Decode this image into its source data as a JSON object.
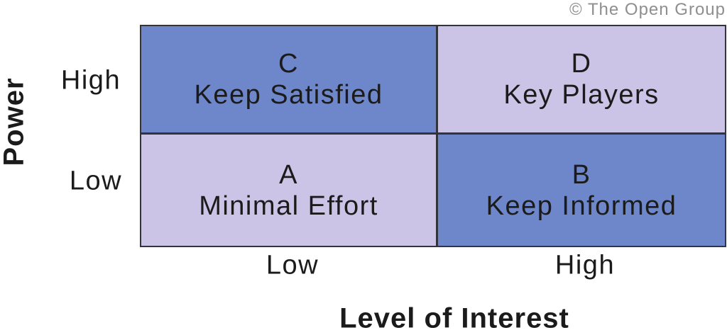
{
  "copyright": "© The Open Group",
  "y_axis": {
    "title": "Power",
    "labels": {
      "high": "High",
      "low": "Low"
    }
  },
  "x_axis": {
    "title": "Level of Interest",
    "labels": {
      "low": "Low",
      "high": "High"
    }
  },
  "matrix": {
    "top_left": {
      "letter": "C",
      "strategy": "Keep Satisfied",
      "power": "High",
      "interest": "Low"
    },
    "top_right": {
      "letter": "D",
      "strategy": "Key Players",
      "power": "High",
      "interest": "High"
    },
    "bottom_left": {
      "letter": "A",
      "strategy": "Minimal Effort",
      "power": "Low",
      "interest": "Low"
    },
    "bottom_right": {
      "letter": "B",
      "strategy": "Keep Informed",
      "power": "Low",
      "interest": "High"
    }
  },
  "colors": {
    "cell_dark": "#6E87CB",
    "cell_light": "#CBC4E6",
    "grid_border": "#33333D",
    "text": "#1B1B1B",
    "copyright_text": "#8F8F8F"
  }
}
